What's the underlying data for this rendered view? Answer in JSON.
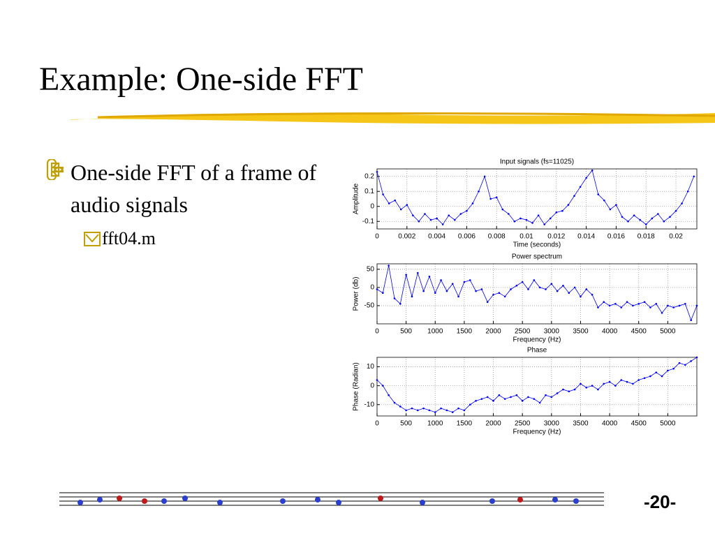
{
  "slide": {
    "title": "Example: One-side FFT",
    "bullet": "One-side FFT of a frame of audio signals",
    "sub_bullet": "fft04.m",
    "page_number": "-20-"
  },
  "chart_data": [
    {
      "type": "line",
      "title": "Input signals (fs=11025)",
      "x_label": "Time (seconds)",
      "y_label": "Amplitude",
      "grid": true,
      "color": "#0000ff",
      "xlim": [
        0,
        0.0214
      ],
      "ylim": [
        -0.15,
        0.25
      ],
      "xticks": [
        0,
        0.002,
        0.004,
        0.006,
        0.008,
        0.01,
        0.012,
        0.014,
        0.016,
        0.018,
        0.02
      ],
      "yticks": [
        -0.1,
        0,
        0.1,
        0.2
      ],
      "x": [
        0,
        0.0004,
        0.0008,
        0.0012,
        0.0016,
        0.002,
        0.0024,
        0.0028,
        0.0032,
        0.0036,
        0.004,
        0.0044,
        0.0048,
        0.0052,
        0.0056,
        0.006,
        0.0064,
        0.0068,
        0.0072,
        0.0076,
        0.008,
        0.0084,
        0.0088,
        0.0092,
        0.0096,
        0.01,
        0.0104,
        0.0108,
        0.0112,
        0.0116,
        0.012,
        0.0124,
        0.0128,
        0.0132,
        0.0136,
        0.014,
        0.0144,
        0.0148,
        0.0152,
        0.0156,
        0.016,
        0.0164,
        0.0168,
        0.0172,
        0.0176,
        0.018,
        0.0184,
        0.0188,
        0.0192,
        0.0196,
        0.02,
        0.0204,
        0.0208,
        0.0212
      ],
      "values": [
        0.23,
        0.08,
        0.02,
        0.04,
        -0.02,
        0.01,
        -0.06,
        -0.1,
        -0.05,
        -0.09,
        -0.08,
        -0.12,
        -0.06,
        -0.09,
        -0.05,
        -0.03,
        0.02,
        0.1,
        0.2,
        0.05,
        0.06,
        -0.02,
        -0.05,
        -0.1,
        -0.08,
        -0.09,
        -0.11,
        -0.06,
        -0.12,
        -0.08,
        -0.04,
        -0.03,
        0.01,
        0.07,
        0.13,
        0.19,
        0.24,
        0.08,
        0.04,
        -0.02,
        0.01,
        -0.07,
        -0.1,
        -0.06,
        -0.09,
        -0.12,
        -0.08,
        -0.05,
        -0.1,
        -0.07,
        -0.03,
        0.02,
        0.1,
        0.2
      ]
    },
    {
      "type": "line",
      "title": "Power spectrum",
      "x_label": "Frequency (Hz)",
      "y_label": "Power (db)",
      "grid": true,
      "color": "#0000ff",
      "xlim": [
        0,
        5500
      ],
      "ylim": [
        -100,
        65
      ],
      "xticks": [
        0,
        500,
        1000,
        1500,
        2000,
        2500,
        3000,
        3500,
        4000,
        4500,
        5000
      ],
      "yticks": [
        -50,
        0,
        50
      ],
      "x": [
        0,
        100,
        200,
        300,
        400,
        500,
        600,
        700,
        800,
        900,
        1000,
        1100,
        1200,
        1300,
        1400,
        1500,
        1600,
        1700,
        1800,
        1900,
        2000,
        2100,
        2200,
        2300,
        2400,
        2500,
        2600,
        2700,
        2800,
        2900,
        3000,
        3100,
        3200,
        3300,
        3400,
        3500,
        3600,
        3700,
        3800,
        3900,
        4000,
        4100,
        4200,
        4300,
        4400,
        4500,
        4600,
        4700,
        4800,
        4900,
        5000,
        5100,
        5200,
        5300,
        5400,
        5500
      ],
      "values": [
        -5,
        -15,
        60,
        -30,
        -45,
        35,
        -25,
        40,
        -10,
        30,
        -15,
        20,
        -10,
        10,
        -25,
        15,
        20,
        -10,
        -5,
        -40,
        -20,
        -15,
        -25,
        -5,
        5,
        15,
        -5,
        20,
        0,
        -5,
        10,
        -10,
        5,
        -15,
        0,
        -25,
        -5,
        -20,
        -55,
        -40,
        -50,
        -45,
        -55,
        -40,
        -50,
        -45,
        -40,
        -55,
        -45,
        -70,
        -50,
        -55,
        -50,
        -45,
        -90,
        -50
      ]
    },
    {
      "type": "line",
      "title": "Phase",
      "x_label": "Frequency (Hz)",
      "y_label": "Phase (Radian)",
      "grid": true,
      "color": "#0000ff",
      "xlim": [
        0,
        5500
      ],
      "ylim": [
        -16,
        15
      ],
      "xticks": [
        0,
        500,
        1000,
        1500,
        2000,
        2500,
        3000,
        3500,
        4000,
        4500,
        5000
      ],
      "yticks": [
        -10,
        0,
        10
      ],
      "x": [
        0,
        100,
        200,
        300,
        400,
        500,
        600,
        700,
        800,
        900,
        1000,
        1100,
        1200,
        1300,
        1400,
        1500,
        1600,
        1700,
        1800,
        1900,
        2000,
        2100,
        2200,
        2300,
        2400,
        2500,
        2600,
        2700,
        2800,
        2900,
        3000,
        3100,
        3200,
        3300,
        3400,
        3500,
        3600,
        3700,
        3800,
        3900,
        4000,
        4100,
        4200,
        4300,
        4400,
        4500,
        4600,
        4700,
        4800,
        4900,
        5000,
        5100,
        5200,
        5300,
        5400,
        5500
      ],
      "values": [
        3,
        0,
        -5,
        -9,
        -11,
        -13,
        -12,
        -13,
        -12,
        -13,
        -14,
        -12,
        -13,
        -14,
        -12,
        -13,
        -10,
        -8,
        -7,
        -6,
        -8,
        -5,
        -7,
        -6,
        -5,
        -8,
        -6,
        -7,
        -9,
        -5,
        -6,
        -4,
        -2,
        -3,
        -2,
        1,
        -1,
        0,
        -2,
        1,
        2,
        0,
        3,
        2,
        1,
        3,
        4,
        5,
        7,
        5,
        8,
        9,
        12,
        11,
        13,
        15
      ]
    }
  ]
}
